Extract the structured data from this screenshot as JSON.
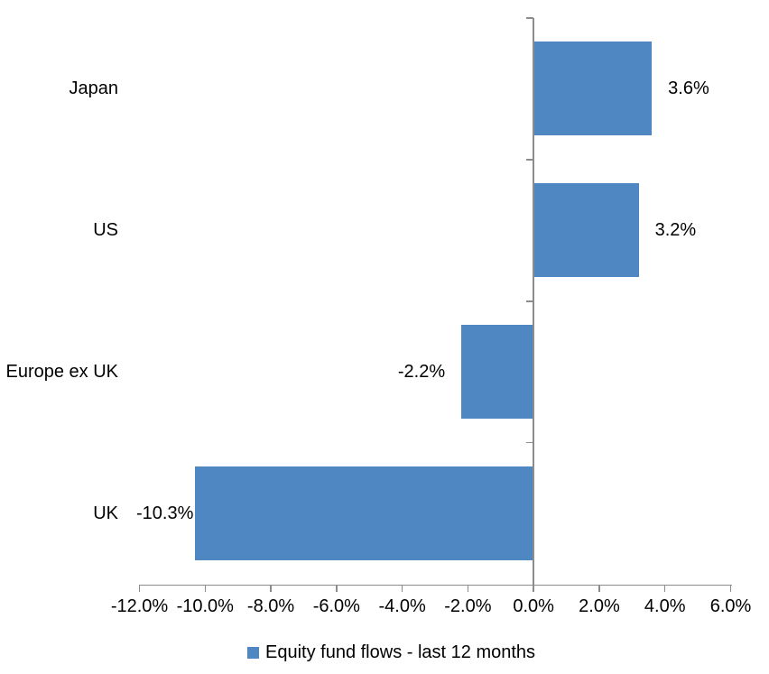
{
  "chart_data": {
    "type": "bar",
    "orientation": "horizontal",
    "title": "",
    "xlabel": "",
    "ylabel": "",
    "categories": [
      "Japan",
      "US",
      "Europe ex UK",
      "UK"
    ],
    "series": [
      {
        "name": "Equity fund flows - last 12 months",
        "values": [
          3.6,
          3.2,
          -2.2,
          -10.3
        ],
        "data_labels": [
          "3.6%",
          "3.2%",
          "-2.2%",
          "-10.3%"
        ]
      }
    ],
    "xlim": [
      -12,
      6
    ],
    "x_ticks": [
      -12,
      -10,
      -8,
      -6,
      -4,
      -2,
      0,
      2,
      4,
      6
    ],
    "x_tick_labels": [
      "-12.0%",
      "-10.0%",
      "-8.0%",
      "-6.0%",
      "-4.0%",
      "-2.0%",
      "0.0%",
      "2.0%",
      "4.0%",
      "6.0%"
    ],
    "grid": false,
    "legend_position": "bottom-center",
    "legend": [
      {
        "label": "Equity fund flows - last 12 months",
        "swatch": "square"
      }
    ],
    "colors": {
      "bar": "#4E87C1",
      "axis": "#8C8C8C",
      "text": "#000000",
      "background": "#FFFFFF"
    }
  }
}
